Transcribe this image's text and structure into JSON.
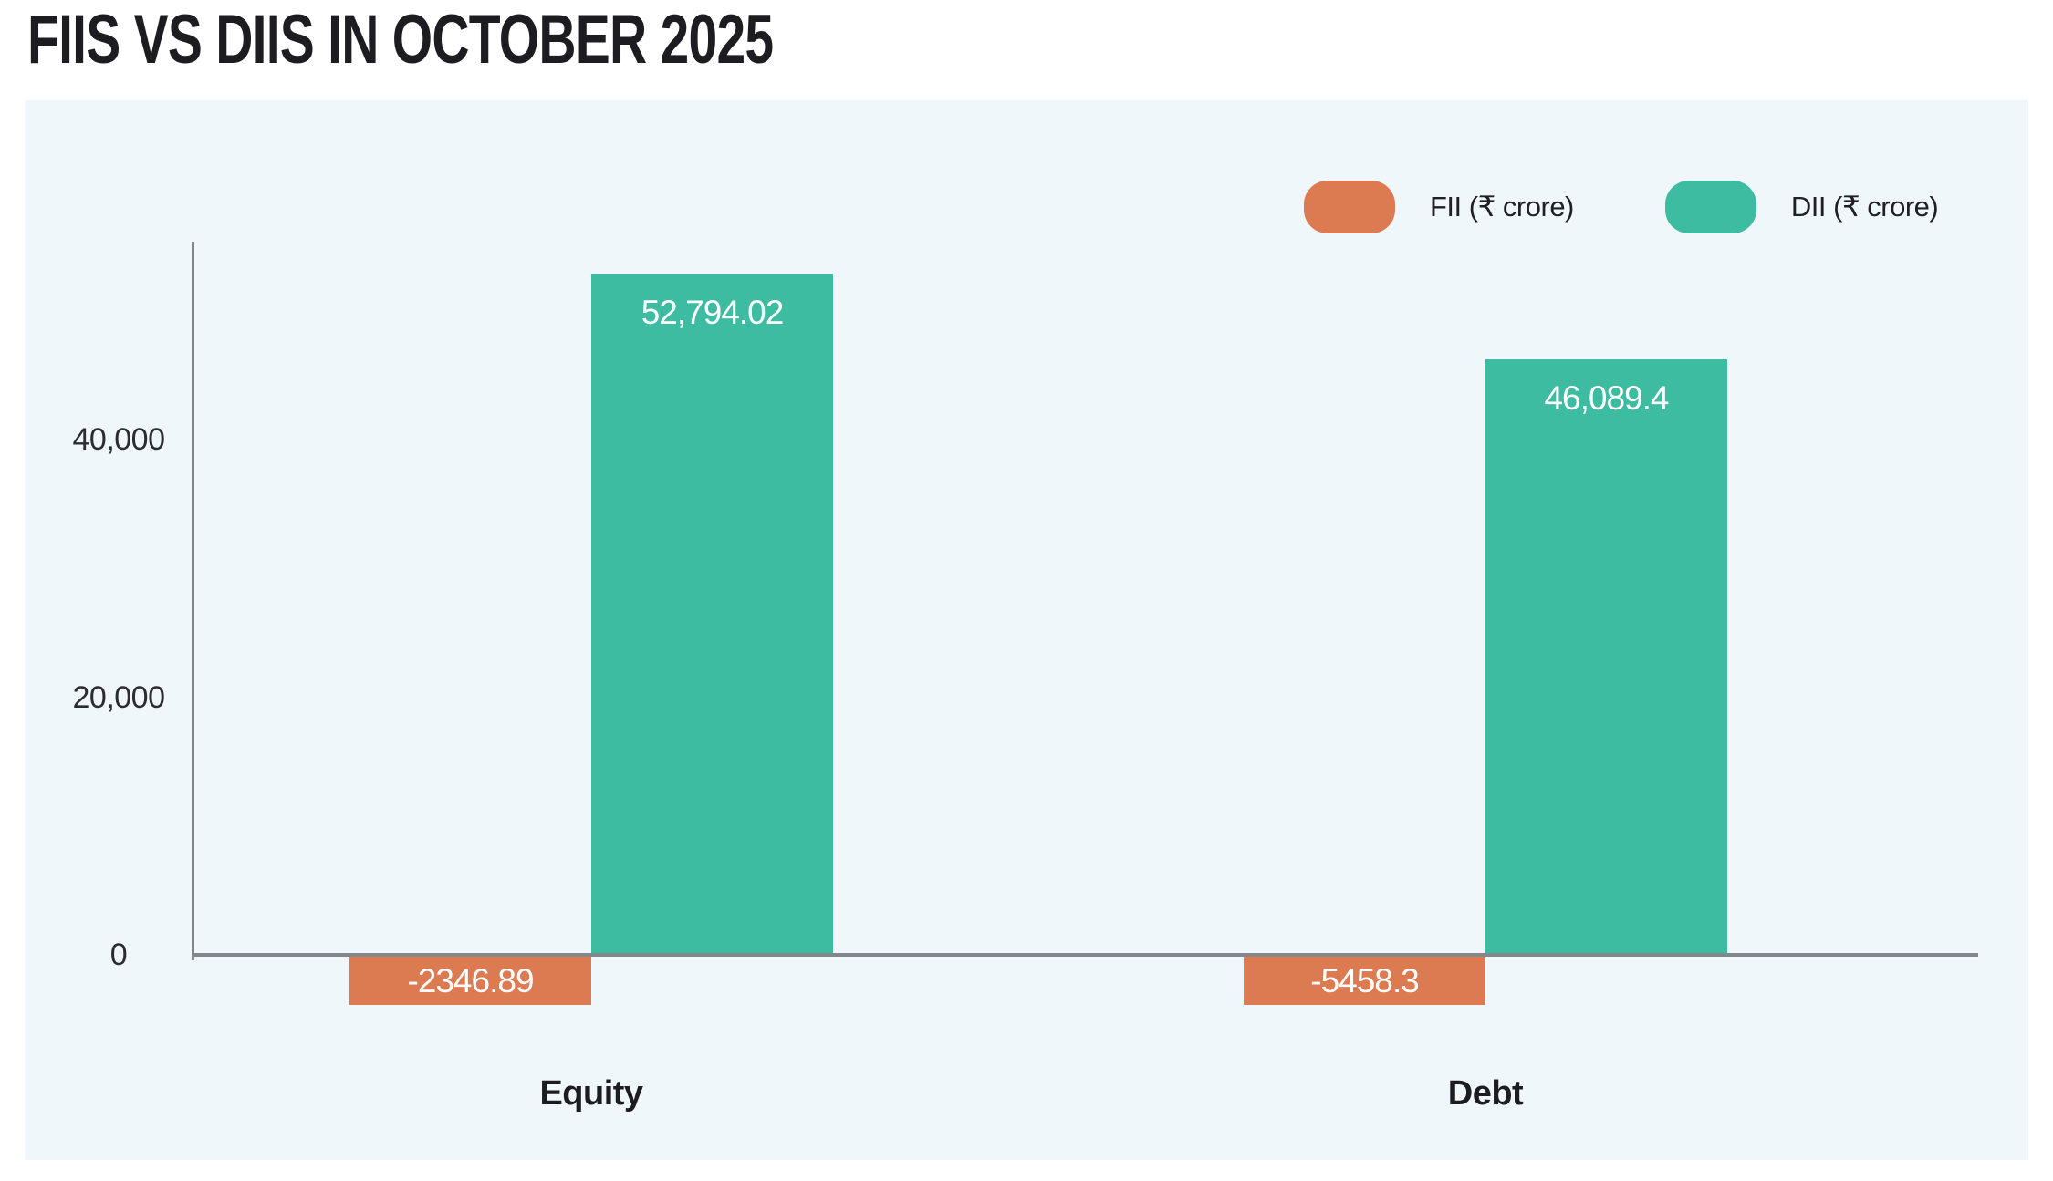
{
  "page": {
    "title": "FIIS VS DIIS IN OCTOBER 2025"
  },
  "legend": {
    "items": [
      {
        "label": "FII (₹ crore)",
        "color": "#dc7b51"
      },
      {
        "label": "DII (₹ crore)",
        "color": "#3ebca1"
      }
    ]
  },
  "chart_data": {
    "type": "bar",
    "title": "FIIS VS DIIS IN OCTOBER 2025",
    "categories": [
      "Equity",
      "Debt"
    ],
    "series": [
      {
        "name": "FII (₹ crore)",
        "color": "#dc7b51",
        "values": [
          -2346.89,
          -5458.3
        ],
        "labels": [
          "-2346.89",
          "-5458.3"
        ]
      },
      {
        "name": "DII (₹ crore)",
        "color": "#3ebca1",
        "values": [
          52794.02,
          46089.4
        ],
        "labels": [
          "52,794.02",
          "46,089.4"
        ]
      }
    ],
    "yticks": [
      {
        "value": 0,
        "label": "0"
      },
      {
        "value": 20000,
        "label": "20,000"
      },
      {
        "value": 40000,
        "label": "40,000"
      }
    ],
    "ylim": [
      -6000,
      55000
    ],
    "xlabel": "",
    "ylabel": "",
    "grid": false,
    "legend_position": "top-right",
    "panel_background": "#f0f7fa",
    "axis_color": "#85888b",
    "value_label_color": "#ffffff"
  }
}
